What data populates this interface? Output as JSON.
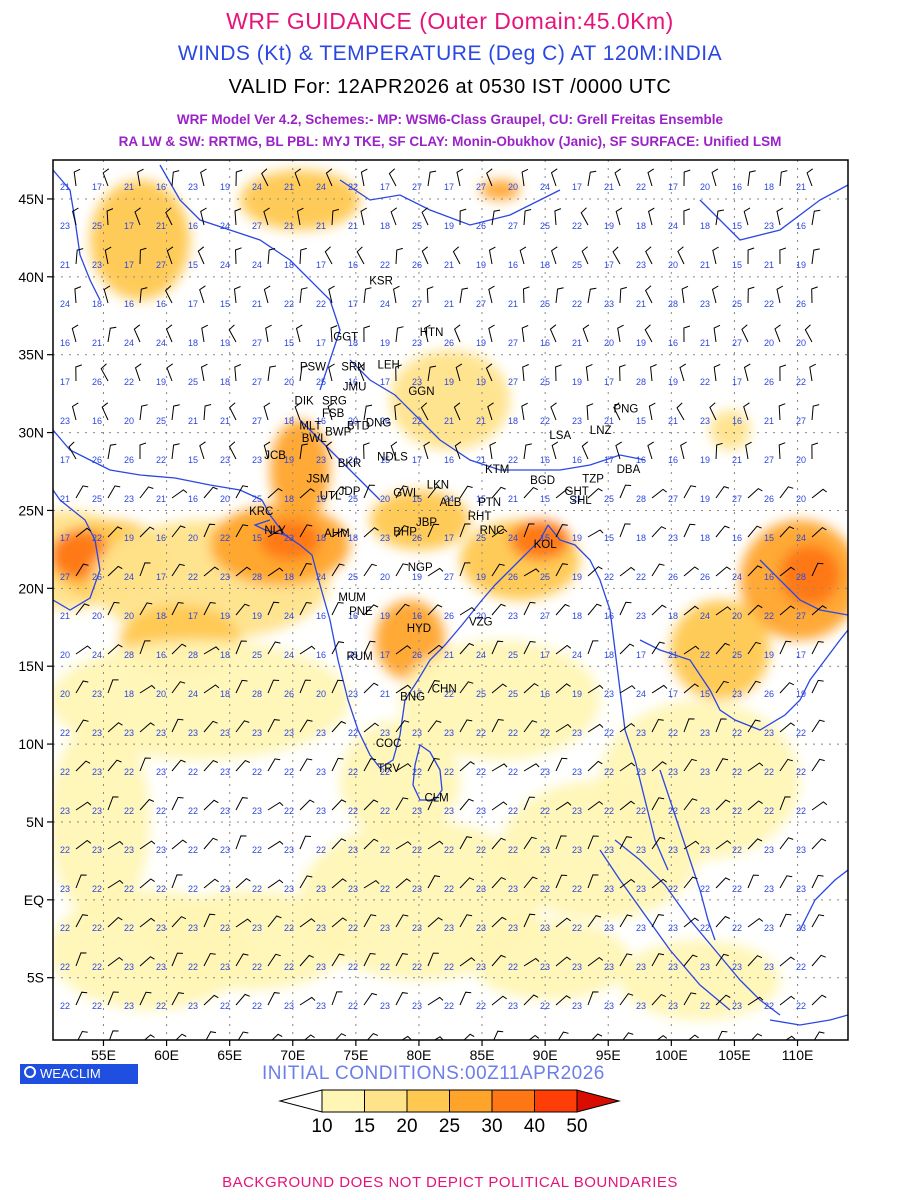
{
  "header": {
    "line1": "WRF GUIDANCE (Outer Domain:45.0Km)",
    "line2": "WINDS (Kt) & TEMPERATURE (Deg C) AT 120M:INDIA",
    "line3": "VALID For: 12APR2026 at 0530 IST /0000 UTC",
    "line4": "WRF Model Ver 4.2, Schemes:- MP: WSM6-Class Graupel, CU: Grell Freitas Ensemble",
    "line5": "RA LW & SW: RRTMG, BL PBL: MYJ TKE, SF CLAY: Monin-Obukhov (Janic), SF SURFACE: Unified LSM"
  },
  "map": {
    "lon_range": [
      51,
      114
    ],
    "lat_range": [
      -9,
      47.5
    ],
    "lon_ticks": [
      "55E",
      "60E",
      "65E",
      "70E",
      "75E",
      "80E",
      "85E",
      "90E",
      "95E",
      "100E",
      "105E",
      "110E"
    ],
    "lat_ticks": [
      "45N",
      "40N",
      "35N",
      "30N",
      "25N",
      "20N",
      "15N",
      "10N",
      "5N",
      "EQ",
      "5S"
    ],
    "colors": {
      "coast": "#2b47e3",
      "grid": "#888888",
      "label": "#2b47e3"
    },
    "stations": [
      {
        "name": "KSR",
        "lon": 77.0,
        "lat": 39.5
      },
      {
        "name": "HTN",
        "lon": 81.0,
        "lat": 36.2
      },
      {
        "name": "GGT",
        "lon": 74.2,
        "lat": 35.9
      },
      {
        "name": "PSW",
        "lon": 71.6,
        "lat": 34.0
      },
      {
        "name": "SRN",
        "lon": 74.8,
        "lat": 34.0
      },
      {
        "name": "LEH",
        "lon": 77.6,
        "lat": 34.1
      },
      {
        "name": "JMU",
        "lon": 74.9,
        "lat": 32.7
      },
      {
        "name": "GGN",
        "lon": 80.2,
        "lat": 32.4
      },
      {
        "name": "DIK",
        "lon": 70.9,
        "lat": 31.8
      },
      {
        "name": "SRG",
        "lon": 73.3,
        "lat": 31.8
      },
      {
        "name": "FSB",
        "lon": 73.2,
        "lat": 31.0
      },
      {
        "name": "MLT",
        "lon": 71.4,
        "lat": 30.2
      },
      {
        "name": "BTD",
        "lon": 75.2,
        "lat": 30.2
      },
      {
        "name": "DNG",
        "lon": 76.8,
        "lat": 30.4
      },
      {
        "name": "BWL",
        "lon": 71.7,
        "lat": 29.4
      },
      {
        "name": "BWP",
        "lon": 73.6,
        "lat": 29.8
      },
      {
        "name": "LSA",
        "lon": 91.2,
        "lat": 29.6
      },
      {
        "name": "LNZ",
        "lon": 94.4,
        "lat": 29.9
      },
      {
        "name": "PNG",
        "lon": 96.4,
        "lat": 31.3
      },
      {
        "name": "JCB",
        "lon": 68.6,
        "lat": 28.3
      },
      {
        "name": "BKR",
        "lon": 74.5,
        "lat": 27.8
      },
      {
        "name": "NDLS",
        "lon": 77.9,
        "lat": 28.2
      },
      {
        "name": "KTM",
        "lon": 86.2,
        "lat": 27.4
      },
      {
        "name": "BGD",
        "lon": 89.8,
        "lat": 26.7
      },
      {
        "name": "TZP",
        "lon": 93.8,
        "lat": 26.8
      },
      {
        "name": "DBA",
        "lon": 96.6,
        "lat": 27.4
      },
      {
        "name": "JSM",
        "lon": 72.0,
        "lat": 26.8
      },
      {
        "name": "JDP",
        "lon": 74.5,
        "lat": 26.0
      },
      {
        "name": "LKN",
        "lon": 81.5,
        "lat": 26.4
      },
      {
        "name": "GWL",
        "lon": 79.0,
        "lat": 25.9
      },
      {
        "name": "UTL",
        "lon": 73.0,
        "lat": 25.7
      },
      {
        "name": "ALB",
        "lon": 82.5,
        "lat": 25.3
      },
      {
        "name": "PTN",
        "lon": 85.6,
        "lat": 25.3
      },
      {
        "name": "GHT",
        "lon": 92.5,
        "lat": 26.0
      },
      {
        "name": "SHL",
        "lon": 92.8,
        "lat": 25.4
      },
      {
        "name": "KRC",
        "lon": 67.5,
        "lat": 24.7
      },
      {
        "name": "RHT",
        "lon": 84.8,
        "lat": 24.4
      },
      {
        "name": "JBP",
        "lon": 80.6,
        "lat": 24.0
      },
      {
        "name": "NLY",
        "lon": 68.6,
        "lat": 23.5
      },
      {
        "name": "AHM",
        "lon": 73.5,
        "lat": 23.3
      },
      {
        "name": "BHP",
        "lon": 78.9,
        "lat": 23.4
      },
      {
        "name": "RNC",
        "lon": 85.8,
        "lat": 23.5
      },
      {
        "name": "KOL",
        "lon": 90.0,
        "lat": 22.6
      },
      {
        "name": "NGP",
        "lon": 80.1,
        "lat": 21.1
      },
      {
        "name": "MUM",
        "lon": 74.7,
        "lat": 19.2
      },
      {
        "name": "PNE",
        "lon": 75.4,
        "lat": 18.3
      },
      {
        "name": "HYD",
        "lon": 80.0,
        "lat": 17.2
      },
      {
        "name": "VZG",
        "lon": 84.9,
        "lat": 17.6
      },
      {
        "name": "RUM",
        "lon": 75.3,
        "lat": 15.4
      },
      {
        "name": "CHN",
        "lon": 82.0,
        "lat": 13.3
      },
      {
        "name": "BNG",
        "lon": 79.5,
        "lat": 12.8
      },
      {
        "name": "COC",
        "lon": 77.6,
        "lat": 9.8
      },
      {
        "name": "TRV",
        "lon": 77.6,
        "lat": 8.2
      },
      {
        "name": "CLM",
        "lon": 81.4,
        "lat": 6.3
      }
    ]
  },
  "legend": {
    "labels": [
      "10",
      "15",
      "20",
      "25",
      "30",
      "40",
      "50"
    ],
    "colors": [
      "#fff6b5",
      "#ffe38a",
      "#ffc850",
      "#ffa42a",
      "#ff7614",
      "#ff3d06",
      "#d80d00"
    ]
  },
  "logo_text": "WEACLIM",
  "initial_conditions": "INITIAL CONDITIONS:00Z11APR2026",
  "footer": "BACKGROUND DOES NOT DEPICT POLITICAL BOUNDARIES"
}
